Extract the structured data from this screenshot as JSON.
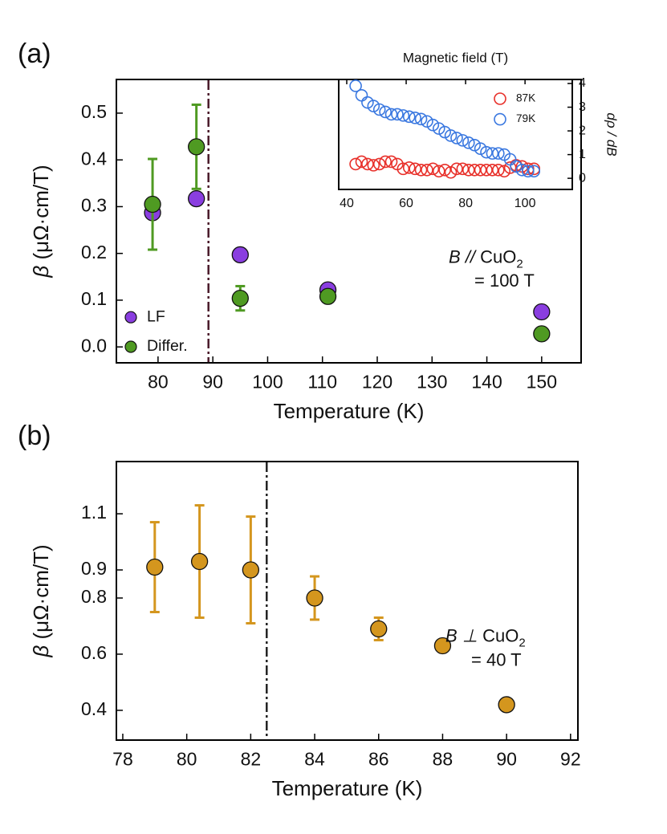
{
  "chart_data": [
    {
      "type": "scatter",
      "panel_label": "(a)",
      "xlabel": "Temperature (K)",
      "ylabel_symbol": "β",
      "ylabel_unit": "(μΩ·cm/T)",
      "x": [
        79,
        87,
        95,
        111,
        150
      ],
      "series": [
        {
          "name": "LF",
          "color": "#8a3ee0",
          "values": [
            0.287,
            0.317,
            0.197,
            0.122,
            0.075
          ]
        },
        {
          "name": "Differ.",
          "color": "#4f9a22",
          "values": [
            0.305,
            0.428,
            0.104,
            0.108,
            0.028
          ],
          "errors": [
            0.097,
            0.09,
            0.026,
            null,
            null
          ]
        }
      ],
      "xlim": [
        72.4,
        157.2
      ],
      "xticks": [
        80,
        90,
        100,
        110,
        120,
        130,
        140,
        150
      ],
      "ylim": [
        -0.034,
        0.572
      ],
      "yticks": [
        {
          "value": 0,
          "label": "0.0"
        },
        0.1,
        0.2,
        0.3,
        0.4,
        0.5
      ],
      "vline": 89.2,
      "vline_color": "#4a1a2a",
      "legend": "lower left",
      "annotation": {
        "var": "B",
        "symbol": "//",
        "compound": "CuO",
        "subscript": "2",
        "line2": "= 100 T"
      }
    },
    {
      "type": "scatter",
      "markers": "open",
      "xlabel": "Magnetic field (T)",
      "xlabel_side": "top",
      "ylabel": "dρ / dB",
      "yaxis_side": "right",
      "x": [
        43,
        45,
        47,
        49,
        51,
        53,
        55,
        57,
        59,
        61,
        63,
        65,
        67,
        69,
        71,
        73,
        75,
        77,
        79,
        81,
        83,
        85,
        87,
        89,
        91,
        93,
        95,
        97,
        99,
        101,
        103
      ],
      "series": [
        {
          "name": "87K",
          "color": "#e8302a",
          "values": [
            0.6,
            0.7,
            0.6,
            0.55,
            0.6,
            0.7,
            0.7,
            0.6,
            0.4,
            0.45,
            0.4,
            0.35,
            0.35,
            0.4,
            0.3,
            0.35,
            0.25,
            0.4,
            0.4,
            0.35,
            0.35,
            0.35,
            0.35,
            0.35,
            0.35,
            0.3,
            0.45,
            0.55,
            0.5,
            0.4,
            0.4
          ]
        },
        {
          "name": "79K",
          "color": "#3a78e0",
          "values": [
            3.9,
            3.5,
            3.2,
            3.05,
            2.9,
            2.8,
            2.7,
            2.7,
            2.65,
            2.6,
            2.55,
            2.5,
            2.4,
            2.25,
            2.1,
            1.95,
            1.8,
            1.7,
            1.6,
            1.5,
            1.4,
            1.25,
            1.1,
            1.05,
            1.05,
            1.0,
            0.8,
            0.5,
            0.35,
            0.3,
            0.3
          ]
        }
      ],
      "xlim": [
        37.3,
        115.9
      ],
      "xticks": [
        40,
        60,
        80,
        100
      ],
      "ylim": [
        -0.47,
        4.17
      ],
      "yticks": [
        0,
        1,
        2,
        3,
        4
      ],
      "legend": "upper right"
    },
    {
      "type": "scatter",
      "panel_label": "(b)",
      "xlabel": "Temperature (K)",
      "ylabel_symbol": "β",
      "ylabel_unit": "(μΩ·cm/T)",
      "x": [
        79,
        80.4,
        82,
        84,
        86,
        88,
        90
      ],
      "series": [
        {
          "name": null,
          "color": "#d4961e",
          "values": [
            0.91,
            0.93,
            0.9,
            0.8,
            0.69,
            0.63,
            0.42
          ],
          "errors": [
            0.16,
            0.2,
            0.19,
            0.077,
            0.04,
            null,
            null
          ]
        }
      ],
      "xlim": [
        77.8,
        92.23
      ],
      "xticks": [
        78,
        80,
        82,
        84,
        86,
        88,
        90,
        92
      ],
      "ylim": [
        0.294,
        1.286
      ],
      "yticks": [
        0.4,
        0.6,
        0.8,
        0.9,
        1.1
      ],
      "vline": 82.5,
      "vline_color": "#222222",
      "annotation": {
        "var": "B",
        "symbol": "⊥",
        "compound": "CuO",
        "subscript": "2",
        "line2": "= 40 T"
      }
    }
  ]
}
